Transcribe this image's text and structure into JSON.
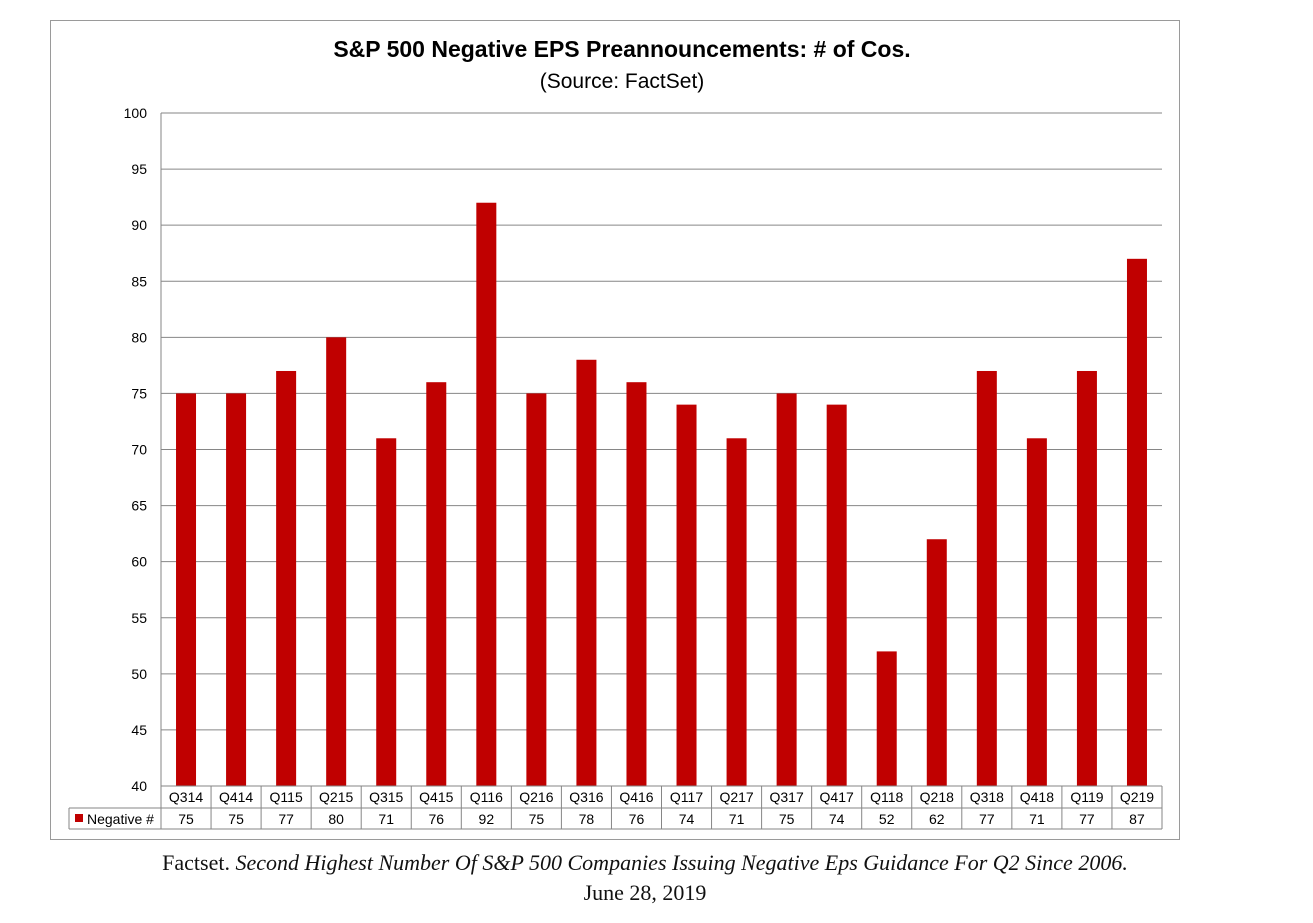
{
  "chart_data": {
    "type": "bar",
    "title": "S&P 500 Negative EPS Preannouncements: # of Cos.",
    "subtitle": "(Source: FactSet)",
    "categories": [
      "Q314",
      "Q414",
      "Q115",
      "Q215",
      "Q315",
      "Q415",
      "Q116",
      "Q216",
      "Q316",
      "Q416",
      "Q117",
      "Q217",
      "Q317",
      "Q417",
      "Q118",
      "Q218",
      "Q318",
      "Q418",
      "Q119",
      "Q219"
    ],
    "series": [
      {
        "name": "Negative #",
        "values": [
          75,
          75,
          77,
          80,
          71,
          76,
          92,
          75,
          78,
          76,
          74,
          71,
          75,
          74,
          52,
          62,
          77,
          71,
          77,
          87
        ],
        "color": "#c00000"
      }
    ],
    "ylim": [
      40,
      100
    ],
    "yticks": [
      "40",
      "45",
      "50",
      "55",
      "60",
      "65",
      "70",
      "75",
      "80",
      "85",
      "90",
      "95",
      "100"
    ],
    "grid": true,
    "legend": "data-table"
  },
  "caption": {
    "source": "Factset.",
    "title": "Second Highest Number Of S&P 500 Companies Issuing Negative Eps Guidance For Q2 Since 2006.",
    "date": "June 28, 2019"
  }
}
